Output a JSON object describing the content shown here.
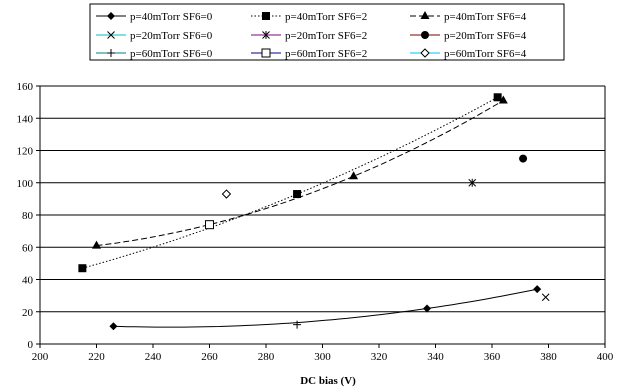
{
  "chart_data": {
    "type": "scatter",
    "title": "",
    "xlabel": "DC bias (V)",
    "ylabel": "",
    "xlim": [
      200,
      400
    ],
    "ylim": [
      0,
      160
    ],
    "xticks": [
      200,
      220,
      240,
      260,
      280,
      300,
      320,
      340,
      360,
      380,
      400
    ],
    "yticks": [
      0,
      20,
      40,
      60,
      80,
      100,
      120,
      140,
      160
    ],
    "grid": "horizontal major gridlines",
    "legend_position": "top",
    "series": [
      {
        "name": "p=40mTorr SF6=0",
        "marker": "diamond-filled",
        "color": "#000000",
        "line": "solid",
        "points": [
          [
            226,
            11
          ],
          [
            337,
            22
          ],
          [
            376,
            34
          ]
        ]
      },
      {
        "name": "p=40mTorr SF6=2",
        "marker": "square-filled",
        "color": "#000000",
        "line": "dotted",
        "points": [
          [
            215,
            47
          ],
          [
            291,
            93
          ],
          [
            362,
            153
          ]
        ]
      },
      {
        "name": "p=40mTorr SF6=4",
        "marker": "triangle-filled",
        "color": "#000000",
        "line": "dashed",
        "points": [
          [
            220,
            61
          ],
          [
            311,
            104
          ],
          [
            364,
            151
          ]
        ]
      },
      {
        "name": "p=20mTorr SF6=0",
        "marker": "x",
        "color": "#00c0c0",
        "line": "solid",
        "points": [
          [
            379,
            29
          ]
        ]
      },
      {
        "name": "p=20mTorr SF6=2",
        "marker": "asterisk",
        "color": "#800080",
        "line": "solid",
        "points": [
          [
            353,
            100
          ]
        ]
      },
      {
        "name": "p=20mTorr SF6=4",
        "marker": "circle-filled",
        "color": "#800000",
        "line": "solid",
        "points": [
          [
            371,
            115
          ]
        ]
      },
      {
        "name": "p=60mTorr SF6=0",
        "marker": "plus",
        "color": "#008080",
        "line": "solid",
        "points": [
          [
            291,
            12
          ]
        ]
      },
      {
        "name": "p=60mTorr SF6=2",
        "marker": "square-open",
        "color": "#000080",
        "line": "solid",
        "points": [
          [
            260,
            74
          ]
        ]
      },
      {
        "name": "p=60mTorr SF6=4",
        "marker": "diamond-open",
        "color": "#00c0ff",
        "line": "solid",
        "points": [
          [
            266,
            93
          ]
        ]
      }
    ]
  }
}
